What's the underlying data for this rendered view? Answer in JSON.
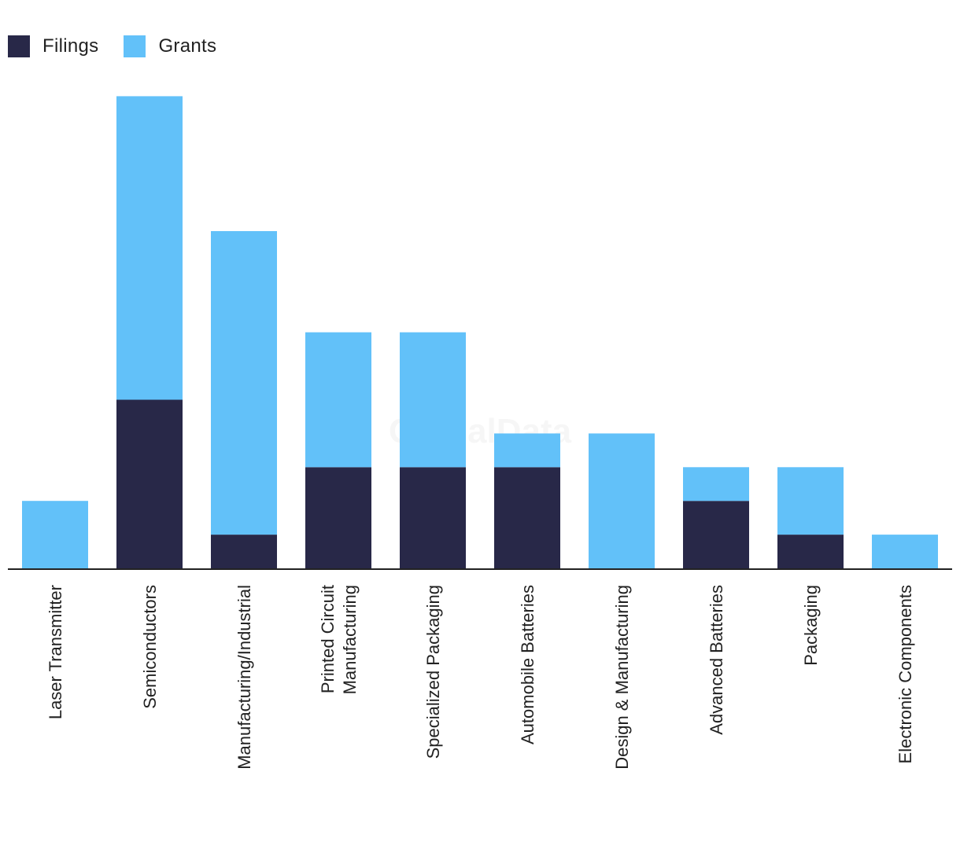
{
  "colors": {
    "filings": "#282848",
    "grants": "#62c1f9",
    "axis": "#222222"
  },
  "watermark": "GlobalData",
  "chart_data": {
    "type": "bar",
    "stacked": true,
    "categories": [
      "Laser Transmitter",
      "Semiconductors",
      "Manufacturing/Industrial",
      [
        "Printed Circuit",
        "Manufacturing"
      ],
      "Specialized Packaging",
      "Automobile Batteries",
      "Design & Manufacturing",
      "Advanced Batteries",
      "Packaging",
      "Electronic Components"
    ],
    "series": [
      {
        "name": "Filings",
        "values": [
          0,
          5,
          1,
          3,
          3,
          3,
          0,
          2,
          1,
          0
        ]
      },
      {
        "name": "Grants",
        "values": [
          2,
          9,
          9,
          4,
          4,
          1,
          4,
          1,
          2,
          1
        ]
      }
    ],
    "ylim": [
      0,
      14
    ],
    "grid": false,
    "legend_position": "top-left",
    "xlabel": "",
    "ylabel": "",
    "title": ""
  }
}
